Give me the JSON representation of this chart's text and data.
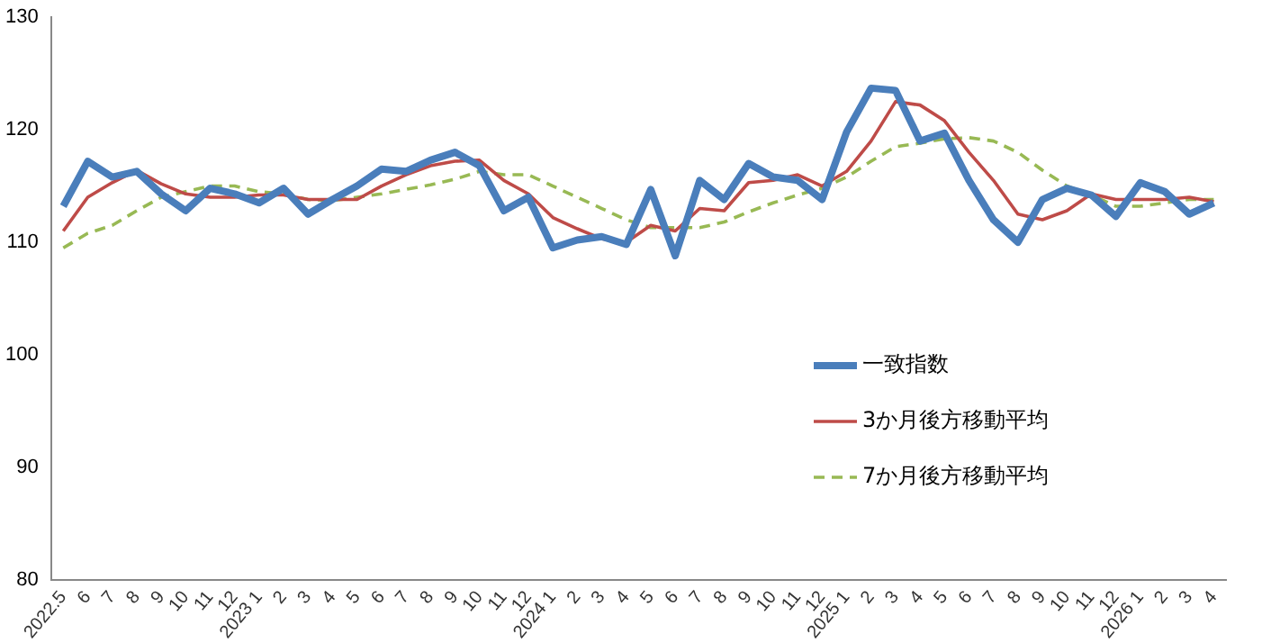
{
  "chart_data": {
    "type": "line",
    "categories": [
      "2022.5",
      "6",
      "7",
      "8",
      "9",
      "10",
      "11",
      "12",
      "2023 1",
      "2",
      "3",
      "4",
      "5",
      "6",
      "7",
      "8",
      "9",
      "10",
      "11",
      "12",
      "2024 1",
      "2",
      "3",
      "4",
      "5",
      "6",
      "7",
      "8",
      "9",
      "10",
      "11",
      "12",
      "2025 1",
      "2",
      "3",
      "4",
      "5",
      "6",
      "7",
      "8",
      "9",
      "10",
      "11",
      "12",
      "2026 1",
      "2",
      "3",
      "4"
    ],
    "series": [
      {
        "name": "一致指数",
        "color": "#4a7ebb",
        "line_style": "solid",
        "values": [
          113.2,
          117.2,
          115.8,
          116.3,
          114.3,
          112.8,
          114.8,
          114.3,
          113.5,
          114.8,
          112.5,
          113.8,
          115,
          116.5,
          116.3,
          117.3,
          118,
          116.8,
          112.8,
          114,
          109.5,
          110.2,
          110.5,
          109.8,
          114.7,
          108.8,
          115.5,
          113.8,
          117,
          115.8,
          115.5,
          113.8,
          119.8,
          123.7,
          123.5,
          119,
          119.7,
          115.5,
          112,
          110,
          113.8,
          114.8,
          114.2,
          112.3,
          115.3,
          114.5,
          112.5,
          113.5
        ]
      },
      {
        "name": "3か月後方移動平均",
        "color": "#be4b48",
        "line_style": "solid",
        "values": [
          111,
          114,
          115.3,
          116.4,
          115.2,
          114.3,
          114,
          114,
          114.2,
          114.2,
          113.8,
          113.8,
          113.8,
          115,
          116,
          116.8,
          117.2,
          117.3,
          115.5,
          114.3,
          112.2,
          111.2,
          110.3,
          110,
          111.5,
          111,
          113,
          112.8,
          115.3,
          115.5,
          116,
          115,
          116.3,
          119,
          122.5,
          122.2,
          120.8,
          118,
          115.5,
          112.5,
          112,
          112.8,
          114.3,
          113.8,
          113.8,
          113.8,
          114,
          113.6
        ]
      },
      {
        "name": "7か月後方移動平均",
        "color": "#98b954",
        "line_style": "dashed",
        "values": [
          109.5,
          110.8,
          111.5,
          112.8,
          114,
          114.5,
          115,
          115,
          114.5,
          114.3,
          113.8,
          113.7,
          114,
          114.3,
          114.7,
          115.1,
          115.6,
          116.3,
          116,
          116,
          115,
          114,
          113,
          112,
          111.3,
          111.3,
          111.3,
          111.8,
          112.7,
          113.5,
          114.2,
          114.8,
          115.8,
          117.2,
          118.5,
          118.8,
          119.2,
          119.3,
          119,
          118,
          116.4,
          115,
          114.2,
          113.2,
          113.2,
          113.5,
          113.8,
          113.8
        ]
      }
    ],
    "ylim": [
      80,
      130
    ],
    "yticks": [
      80,
      90,
      100,
      110,
      120,
      130
    ],
    "grid": false,
    "legend": "bottom right",
    "marker": "none"
  }
}
